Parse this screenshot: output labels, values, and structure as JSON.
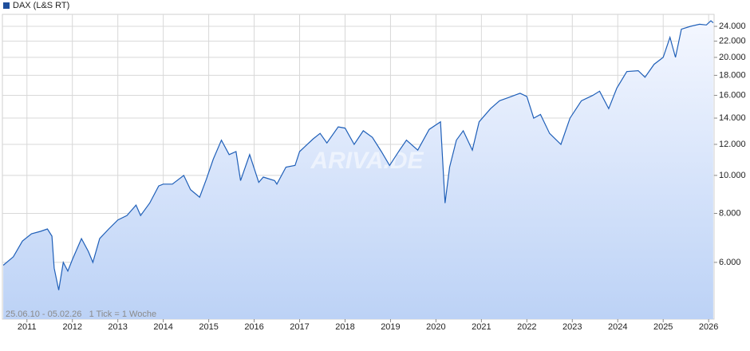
{
  "chart_data": {
    "type": "line",
    "note": "25.06.10 - 05.02.26   1 Tick = 1 Woche",
    "watermark": "ARIVA.DE",
    "log_scale": true,
    "grid": true,
    "xlim": [
      2010.46,
      2026.12
    ],
    "xticks": [
      2011,
      2012,
      2013,
      2014,
      2015,
      2016,
      2017,
      2018,
      2019,
      2020,
      2021,
      2022,
      2023,
      2024,
      2025,
      2026
    ],
    "ylim": [
      4300,
      25750
    ],
    "yticks": [
      {
        "value": 6000,
        "label": "6.000"
      },
      {
        "value": 8000,
        "label": "8.000"
      },
      {
        "value": 10000,
        "label": "10.000"
      },
      {
        "value": 12000,
        "label": "12.000"
      },
      {
        "value": 14000,
        "label": "14.000"
      },
      {
        "value": 16000,
        "label": "16.000"
      },
      {
        "value": 18000,
        "label": "18.000"
      },
      {
        "value": 20000,
        "label": "20.000"
      },
      {
        "value": 22000,
        "label": "22.000"
      },
      {
        "value": 24000,
        "label": "24.000"
      }
    ],
    "x": [
      2010.48,
      2010.7,
      2010.9,
      2011.1,
      2011.3,
      2011.45,
      2011.55,
      2011.6,
      2011.7,
      2011.8,
      2011.9,
      2012.0,
      2012.2,
      2012.35,
      2012.45,
      2012.6,
      2012.8,
      2013.0,
      2013.2,
      2013.4,
      2013.5,
      2013.7,
      2013.9,
      2014.0,
      2014.2,
      2014.45,
      2014.6,
      2014.8,
      2014.95,
      2015.1,
      2015.28,
      2015.45,
      2015.6,
      2015.7,
      2015.9,
      2016.1,
      2016.2,
      2016.45,
      2016.5,
      2016.7,
      2016.9,
      2017.0,
      2017.3,
      2017.45,
      2017.6,
      2017.85,
      2018.0,
      2018.2,
      2018.4,
      2018.6,
      2018.8,
      2018.98,
      2019.2,
      2019.35,
      2019.6,
      2019.85,
      2020.1,
      2020.2,
      2020.3,
      2020.45,
      2020.6,
      2020.8,
      2020.95,
      2021.2,
      2021.4,
      2021.6,
      2021.85,
      2022.0,
      2022.15,
      2022.3,
      2022.5,
      2022.75,
      2022.95,
      2023.2,
      2023.45,
      2023.6,
      2023.8,
      2023.98,
      2024.2,
      2024.45,
      2024.6,
      2024.8,
      2025.0,
      2025.15,
      2025.27,
      2025.4,
      2025.6,
      2025.8,
      2025.95,
      2026.05,
      2026.1
    ],
    "series": [
      {
        "name": "DAX (L&S RT)",
        "color": "#1f5fb8",
        "values": [
          5900,
          6200,
          6800,
          7100,
          7200,
          7300,
          7000,
          5800,
          5100,
          6000,
          5700,
          6100,
          6900,
          6400,
          6000,
          6900,
          7300,
          7700,
          7900,
          8400,
          7900,
          8500,
          9400,
          9500,
          9500,
          10000,
          9200,
          8800,
          9800,
          11000,
          12300,
          11300,
          11500,
          9700,
          11300,
          9600,
          9900,
          9700,
          9500,
          10500,
          10600,
          11500,
          12400,
          12800,
          12100,
          13300,
          13200,
          12000,
          13000,
          12500,
          11500,
          10600,
          11600,
          12300,
          11600,
          13100,
          13700,
          8500,
          10500,
          12300,
          13000,
          11600,
          13700,
          14800,
          15500,
          15800,
          16200,
          15900,
          14000,
          14300,
          12800,
          12000,
          14000,
          15500,
          16000,
          16400,
          14800,
          16700,
          18400,
          18500,
          17800,
          19200,
          20000,
          22500,
          20000,
          23600,
          24000,
          24300,
          24200,
          24800,
          24500
        ]
      }
    ]
  }
}
